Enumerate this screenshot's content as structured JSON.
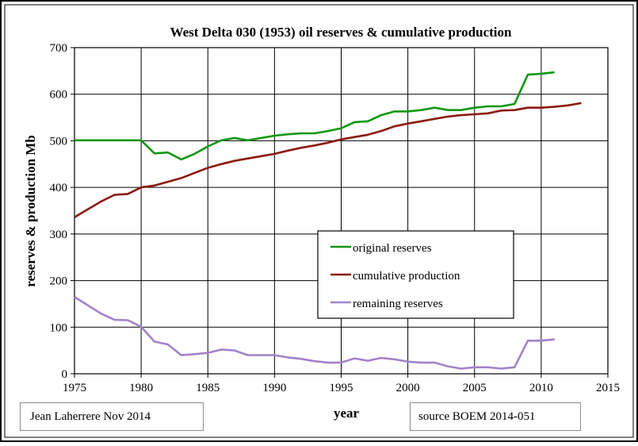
{
  "chart_data": {
    "type": "line",
    "title": "West Delta 030 (1953) oil reserves & cumulative production",
    "xlabel": "year",
    "ylabel": "reserves & production Mb",
    "xlim": [
      1975,
      2015
    ],
    "ylim": [
      0,
      700
    ],
    "xticks": [
      1975,
      1980,
      1985,
      1990,
      1995,
      2000,
      2005,
      2010,
      2015
    ],
    "yticks": [
      0,
      100,
      200,
      300,
      400,
      500,
      600,
      700
    ],
    "grid": true,
    "legend_position": "center-right",
    "series": [
      {
        "name": "original reserves",
        "color": "#129612",
        "points": [
          [
            1975,
            501
          ],
          [
            1976,
            501
          ],
          [
            1977,
            501
          ],
          [
            1978,
            501
          ],
          [
            1979,
            501
          ],
          [
            1980,
            501
          ],
          [
            1981,
            473
          ],
          [
            1982,
            475
          ],
          [
            1983,
            460
          ],
          [
            1984,
            472
          ],
          [
            1985,
            488
          ],
          [
            1986,
            501
          ],
          [
            1987,
            506
          ],
          [
            1988,
            501
          ],
          [
            1989,
            506
          ],
          [
            1990,
            511
          ],
          [
            1991,
            514
          ],
          [
            1992,
            516
          ],
          [
            1993,
            516
          ],
          [
            1994,
            521
          ],
          [
            1995,
            527
          ],
          [
            1996,
            540
          ],
          [
            1997,
            542
          ],
          [
            1998,
            555
          ],
          [
            1999,
            563
          ],
          [
            2000,
            563
          ],
          [
            2001,
            566
          ],
          [
            2002,
            571
          ],
          [
            2003,
            566
          ],
          [
            2004,
            566
          ],
          [
            2005,
            571
          ],
          [
            2006,
            574
          ],
          [
            2007,
            574
          ],
          [
            2008,
            579
          ],
          [
            2009,
            642
          ],
          [
            2010,
            644
          ],
          [
            2011,
            647
          ]
        ]
      },
      {
        "name": "cumulative production",
        "color": "#8b1a10",
        "points": [
          [
            1975,
            336
          ],
          [
            1976,
            353
          ],
          [
            1977,
            370
          ],
          [
            1978,
            384
          ],
          [
            1979,
            386
          ],
          [
            1980,
            400
          ],
          [
            1981,
            404
          ],
          [
            1982,
            412
          ],
          [
            1983,
            420
          ],
          [
            1984,
            431
          ],
          [
            1985,
            442
          ],
          [
            1986,
            450
          ],
          [
            1987,
            457
          ],
          [
            1988,
            462
          ],
          [
            1989,
            467
          ],
          [
            1990,
            472
          ],
          [
            1991,
            479
          ],
          [
            1992,
            485
          ],
          [
            1993,
            490
          ],
          [
            1994,
            496
          ],
          [
            1995,
            503
          ],
          [
            1996,
            508
          ],
          [
            1997,
            513
          ],
          [
            1998,
            521
          ],
          [
            1999,
            531
          ],
          [
            2000,
            537
          ],
          [
            2001,
            542
          ],
          [
            2002,
            547
          ],
          [
            2003,
            552
          ],
          [
            2004,
            555
          ],
          [
            2005,
            557
          ],
          [
            2006,
            559
          ],
          [
            2007,
            565
          ],
          [
            2008,
            566
          ],
          [
            2009,
            571
          ],
          [
            2010,
            571
          ],
          [
            2011,
            573
          ],
          [
            2012,
            576
          ],
          [
            2013,
            581
          ]
        ]
      },
      {
        "name": "remaining reserves",
        "color": "#a183c8",
        "points": [
          [
            1975,
            165
          ],
          [
            1976,
            147
          ],
          [
            1977,
            129
          ],
          [
            1978,
            116
          ],
          [
            1979,
            115
          ],
          [
            1980,
            101
          ],
          [
            1981,
            69
          ],
          [
            1982,
            63
          ],
          [
            1983,
            40
          ],
          [
            1984,
            42
          ],
          [
            1985,
            45
          ],
          [
            1986,
            52
          ],
          [
            1987,
            50
          ],
          [
            1988,
            40
          ],
          [
            1989,
            40
          ],
          [
            1990,
            40
          ],
          [
            1991,
            35
          ],
          [
            1992,
            32
          ],
          [
            1993,
            27
          ],
          [
            1994,
            24
          ],
          [
            1995,
            24
          ],
          [
            1996,
            33
          ],
          [
            1997,
            28
          ],
          [
            1998,
            34
          ],
          [
            1999,
            31
          ],
          [
            2000,
            26
          ],
          [
            2001,
            24
          ],
          [
            2002,
            24
          ],
          [
            2003,
            16
          ],
          [
            2004,
            11
          ],
          [
            2005,
            14
          ],
          [
            2006,
            14
          ],
          [
            2007,
            11
          ],
          [
            2008,
            14
          ],
          [
            2009,
            71
          ],
          [
            2010,
            71
          ],
          [
            2011,
            74
          ]
        ]
      }
    ]
  },
  "footer": {
    "author": "Jean Laherrere Nov 2014",
    "source": "source BOEM 2014-051"
  }
}
